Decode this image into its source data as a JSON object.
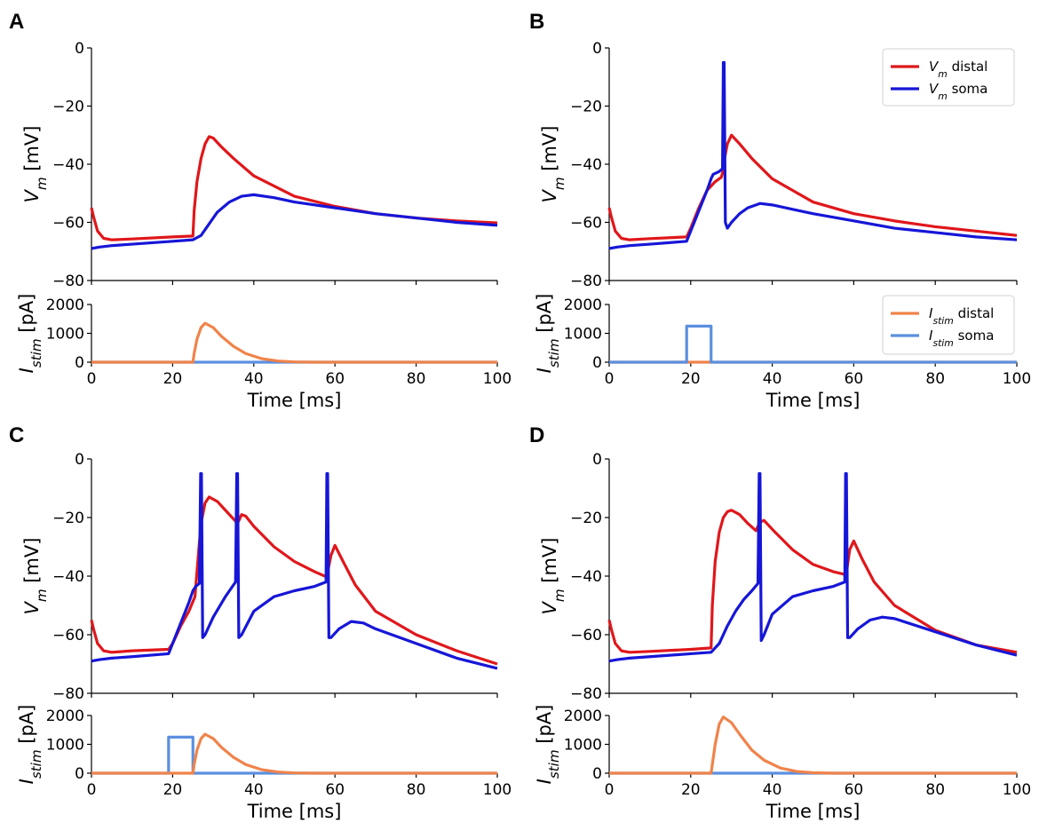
{
  "figure": {
    "panels": [
      "A",
      "B",
      "C",
      "D"
    ]
  },
  "legend_vm": {
    "distal": "V<sub>m</sub> distal",
    "soma": "V<sub>m</sub> soma"
  },
  "legend_istim": {
    "distal": "I<sub>stim</sub> distal",
    "soma": "I<sub>stim</sub> soma"
  },
  "colors": {
    "vm_distal": "#e0171b",
    "vm_soma": "#1616d8",
    "istim_distal": "#f0834a",
    "istim_soma": "#5b8fe0"
  },
  "chart_data": [
    {
      "panel": "A",
      "type": "line",
      "xlabel": "Time [ms]",
      "xlim": [
        0,
        100
      ],
      "xticks": [
        0,
        20,
        40,
        60,
        80,
        100
      ],
      "top": {
        "ylabel": "V<sub>m</sub> [mV]",
        "ylim": [
          -80,
          0
        ],
        "yticks": [
          -80,
          -60,
          -40,
          -20,
          0
        ],
        "legend": false,
        "series": [
          {
            "name": "V_m distal",
            "color_key": "vm_distal",
            "x": [
              0,
              0.5,
              1.5,
              3,
              5,
              10,
              20,
              25,
              25.3,
              26,
              27,
              28,
              29,
              30,
              32,
              35,
              40,
              50,
              60,
              70,
              80,
              90,
              100
            ],
            "y": [
              -55,
              -58,
              -63,
              -65.5,
              -66,
              -65.7,
              -65,
              -64.7,
              -56,
              -46,
              -38,
              -33,
              -30.5,
              -31,
              -34,
              -38,
              -44,
              -51,
              -54.5,
              -57,
              -58.5,
              -59.5,
              -60.2
            ]
          },
          {
            "name": "V_m soma",
            "color_key": "vm_soma",
            "x": [
              0,
              2,
              5,
              10,
              20,
              25,
              27,
              29,
              31,
              34,
              37,
              40,
              45,
              50,
              60,
              70,
              80,
              90,
              100
            ],
            "y": [
              -69,
              -68.5,
              -68,
              -67.5,
              -66.5,
              -66,
              -64.5,
              -60.5,
              -56.5,
              -53,
              -51,
              -50.5,
              -51.5,
              -53,
              -55,
              -57,
              -58.5,
              -60,
              -61
            ]
          }
        ]
      },
      "bottom": {
        "ylabel": "I<sub>stim</sub> [pA]",
        "ylim": [
          0,
          2000
        ],
        "yticks": [
          0,
          1000,
          2000
        ],
        "legend": false,
        "series": [
          {
            "name": "I_stim soma",
            "color_key": "istim_soma",
            "x": [
              0,
              100
            ],
            "y": [
              0,
              0
            ]
          },
          {
            "name": "I_stim distal",
            "color_key": "istim_distal",
            "x": [
              0,
              25,
              25.3,
              26,
              27,
              28,
              30,
              32,
              35,
              38,
              42,
              46,
              50,
              55,
              100
            ],
            "y": [
              0,
              0,
              300,
              800,
              1200,
              1350,
              1200,
              900,
              550,
              300,
              120,
              40,
              10,
              0,
              0
            ]
          }
        ]
      }
    },
    {
      "panel": "B",
      "type": "line",
      "xlabel": "Time [ms]",
      "xlim": [
        0,
        100
      ],
      "xticks": [
        0,
        20,
        40,
        60,
        80,
        100
      ],
      "top": {
        "ylabel": "V<sub>m</sub> [mV]",
        "ylim": [
          -80,
          0
        ],
        "yticks": [
          -80,
          -60,
          -40,
          -20,
          0
        ],
        "legend": true,
        "series": [
          {
            "name": "V_m distal",
            "color_key": "vm_distal",
            "x": [
              0,
              0.5,
              1.5,
              3,
              5,
              10,
              19,
              20,
              22,
              24,
              26,
              27.5,
              28,
              28.3,
              29,
              30,
              32,
              35,
              40,
              50,
              60,
              70,
              80,
              90,
              100
            ],
            "y": [
              -55,
              -58,
              -63,
              -65.5,
              -66,
              -65.6,
              -65,
              -62,
              -55,
              -49,
              -46,
              -44.5,
              -42,
              -38,
              -33,
              -30,
              -33,
              -38,
              -45,
              -53,
              -57,
              -59.5,
              -61.5,
              -63,
              -64.5
            ]
          },
          {
            "name": "V_m soma",
            "color_key": "vm_soma",
            "x": [
              0,
              2,
              5,
              10,
              19,
              20,
              22,
              24,
              25,
              25.5,
              27,
              27.8,
              28,
              28.2,
              28.5,
              29,
              30,
              32,
              34,
              37,
              40,
              45,
              50,
              60,
              70,
              80,
              90,
              100
            ],
            "y": [
              -69,
              -68.5,
              -68,
              -67.5,
              -66.5,
              -63,
              -56,
              -49,
              -45,
              -43.5,
              -42.5,
              -41.5,
              -5,
              -5,
              -60,
              -62,
              -60,
              -57,
              -55,
              -53.5,
              -54,
              -55.5,
              -57,
              -59.5,
              -62,
              -63.5,
              -65,
              -66
            ]
          }
        ]
      },
      "bottom": {
        "ylabel": "I<sub>stim</sub> [pA]",
        "ylim": [
          0,
          2000
        ],
        "yticks": [
          0,
          1000,
          2000
        ],
        "legend": true,
        "series": [
          {
            "name": "I_stim distal",
            "color_key": "istim_distal",
            "x": [
              0,
              100
            ],
            "y": [
              0,
              0
            ]
          },
          {
            "name": "I_stim soma",
            "color_key": "istim_soma",
            "x": [
              0,
              19,
              19,
              25,
              25,
              100
            ],
            "y": [
              0,
              0,
              1250,
              1250,
              0,
              0
            ]
          }
        ]
      }
    },
    {
      "panel": "C",
      "type": "line",
      "xlabel": "Time [ms]",
      "xlim": [
        0,
        100
      ],
      "xticks": [
        0,
        20,
        40,
        60,
        80,
        100
      ],
      "top": {
        "ylabel": "V<sub>m</sub> [mV]",
        "ylim": [
          -80,
          0
        ],
        "yticks": [
          -80,
          -60,
          -40,
          -20,
          0
        ],
        "legend": false,
        "series": [
          {
            "name": "V_m distal",
            "color_key": "vm_distal",
            "x": [
              0,
              0.5,
              1.5,
              3,
              5,
              10,
              19,
              20,
              22,
              24,
              25.5,
              26.5,
              27,
              28,
              29,
              31,
              33,
              35,
              36,
              37,
              38,
              40,
              45,
              50,
              55,
              57.5,
              58,
              59,
              60,
              62,
              65,
              70,
              80,
              90,
              100
            ],
            "y": [
              -55,
              -58,
              -63,
              -65.5,
              -66,
              -65.5,
              -65,
              -63,
              -57,
              -52,
              -47,
              -30,
              -22,
              -15,
              -13,
              -14.5,
              -17.5,
              -20.5,
              -22,
              -19,
              -19.5,
              -23,
              -30,
              -35,
              -38.5,
              -40,
              -40,
              -33,
              -29.5,
              -35,
              -43,
              -52,
              -60,
              -65.5,
              -70
            ]
          },
          {
            "name": "V_m soma",
            "color_key": "vm_soma",
            "x": [
              0,
              2,
              5,
              10,
              19,
              20,
              22,
              24,
              25,
              25.7,
              26.6,
              26.9,
              27.1,
              27.4,
              28,
              30,
              33,
              35.5,
              35.8,
              36,
              36.3,
              37,
              40,
              45,
              50,
              55,
              57.8,
              58,
              58.2,
              58.5,
              59,
              61,
              64,
              67,
              70,
              80,
              90,
              100
            ],
            "y": [
              -69,
              -68.5,
              -68,
              -67.5,
              -66.5,
              -63,
              -56,
              -49,
              -45,
              -43.5,
              -42.5,
              -5,
              -5,
              -61,
              -60,
              -54,
              -47,
              -42,
              -5,
              -5,
              -61,
              -60,
              -52,
              -47,
              -45,
              -43.5,
              -42,
              -5,
              -5,
              -61,
              -61,
              -58,
              -55.5,
              -56,
              -58,
              -63,
              -68,
              -71.5
            ]
          }
        ]
      },
      "bottom": {
        "ylabel": "I<sub>stim</sub> [pA]",
        "ylim": [
          0,
          2000
        ],
        "yticks": [
          0,
          1000,
          2000
        ],
        "legend": false,
        "series": [
          {
            "name": "I_stim soma",
            "color_key": "istim_soma",
            "x": [
              0,
              19,
              19,
              25,
              25,
              100
            ],
            "y": [
              0,
              0,
              1250,
              1250,
              0,
              0
            ]
          },
          {
            "name": "I_stim distal",
            "color_key": "istim_distal",
            "x": [
              0,
              25,
              25.3,
              26,
              27,
              28,
              30,
              32,
              35,
              38,
              42,
              46,
              50,
              55,
              100
            ],
            "y": [
              0,
              0,
              300,
              800,
              1200,
              1350,
              1200,
              900,
              550,
              300,
              120,
              40,
              10,
              0,
              0
            ]
          }
        ]
      }
    },
    {
      "panel": "D",
      "type": "line",
      "xlabel": "Time [ms]",
      "xlim": [
        0,
        100
      ],
      "xticks": [
        0,
        20,
        40,
        60,
        80,
        100
      ],
      "top": {
        "ylabel": "V<sub>m</sub> [mV]",
        "ylim": [
          -80,
          0
        ],
        "yticks": [
          -80,
          -60,
          -40,
          -20,
          0
        ],
        "legend": false,
        "series": [
          {
            "name": "V_m distal",
            "color_key": "vm_distal",
            "x": [
              0,
              0.5,
              1.5,
              3,
              5,
              10,
              20,
              25,
              25.3,
              26,
              27,
              28,
              29,
              30,
              32,
              34,
              36,
              37,
              38,
              40,
              45,
              50,
              55,
              58,
              58.3,
              59,
              60,
              62,
              65,
              70,
              80,
              90,
              100
            ],
            "y": [
              -55,
              -58,
              -63,
              -65.5,
              -66,
              -65.7,
              -65,
              -64.5,
              -50,
              -35,
              -25,
              -20,
              -18,
              -17.5,
              -19,
              -22,
              -24.5,
              -21.5,
              -21,
              -24,
              -31,
              -36,
              -38.5,
              -39.5,
              -38,
              -31,
              -28,
              -34,
              -42,
              -50,
              -58.5,
              -63.5,
              -66
            ]
          },
          {
            "name": "V_m soma",
            "color_key": "vm_soma",
            "x": [
              0,
              2,
              5,
              10,
              20,
              25,
              27,
              29,
              31,
              33,
              35,
              36.5,
              36.8,
              37,
              37.3,
              38,
              40,
              45,
              50,
              55,
              57.8,
              58,
              58.2,
              58.5,
              59,
              61,
              64,
              67,
              70,
              80,
              90,
              100
            ],
            "y": [
              -69,
              -68.5,
              -68,
              -67.5,
              -66.5,
              -66,
              -63,
              -57,
              -52,
              -48,
              -45,
              -42.5,
              -5,
              -5,
              -62,
              -60,
              -53,
              -47,
              -45,
              -43.5,
              -42,
              -5,
              -5,
              -61,
              -61,
              -58,
              -55,
              -54,
              -54.5,
              -59,
              -63.5,
              -67
            ]
          }
        ]
      },
      "bottom": {
        "ylabel": "I<sub>stim</sub> [pA]",
        "ylim": [
          0,
          2000
        ],
        "yticks": [
          0,
          1000,
          2000
        ],
        "legend": false,
        "series": [
          {
            "name": "I_stim soma",
            "color_key": "istim_soma",
            "x": [
              0,
              100
            ],
            "y": [
              0,
              0
            ]
          },
          {
            "name": "I_stim distal",
            "color_key": "istim_distal",
            "x": [
              0,
              25,
              25.3,
              26,
              27,
              28,
              30,
              32,
              35,
              38,
              42,
              46,
              50,
              55,
              100
            ],
            "y": [
              0,
              0,
              300,
              1000,
              1700,
              1950,
              1750,
              1350,
              800,
              450,
              180,
              60,
              15,
              0,
              0
            ]
          }
        ]
      }
    }
  ]
}
